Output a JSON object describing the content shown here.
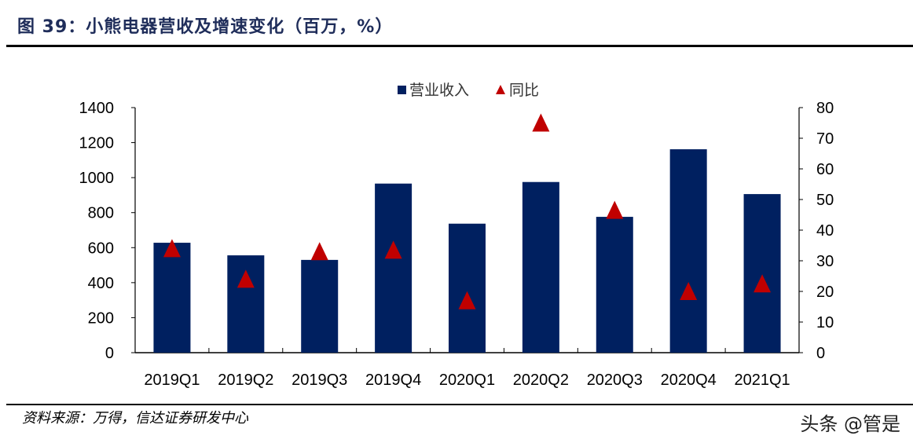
{
  "title": "图 39：小熊电器营收及增速变化（百万，%）",
  "source": "资料来源：万得，信达证券研发中心",
  "watermark": "头条 @管是",
  "chart_data": {
    "type": "bar",
    "categories": [
      "2019Q1",
      "2019Q2",
      "2019Q3",
      "2019Q4",
      "2020Q1",
      "2020Q2",
      "2020Q3",
      "2020Q4",
      "2021Q1"
    ],
    "series": [
      {
        "name": "营业收入",
        "type": "bar",
        "axis": "left",
        "color": "#002060",
        "values": [
          628,
          556,
          530,
          966,
          737,
          975,
          776,
          1162,
          906
        ]
      },
      {
        "name": "同比",
        "type": "scatter",
        "marker": "triangle",
        "axis": "right",
        "color": "#c00000",
        "values": [
          34,
          24,
          33,
          33.5,
          17,
          75,
          46.5,
          20,
          22.5
        ]
      }
    ],
    "ylim_left": [
      0,
      1400
    ],
    "yticks_left": [
      0,
      200,
      400,
      600,
      800,
      1000,
      1200,
      1400
    ],
    "ylim_right": [
      0,
      80
    ],
    "yticks_right": [
      0,
      10,
      20,
      30,
      40,
      50,
      60,
      70,
      80
    ],
    "grid": false,
    "legend_position": "top-center"
  }
}
